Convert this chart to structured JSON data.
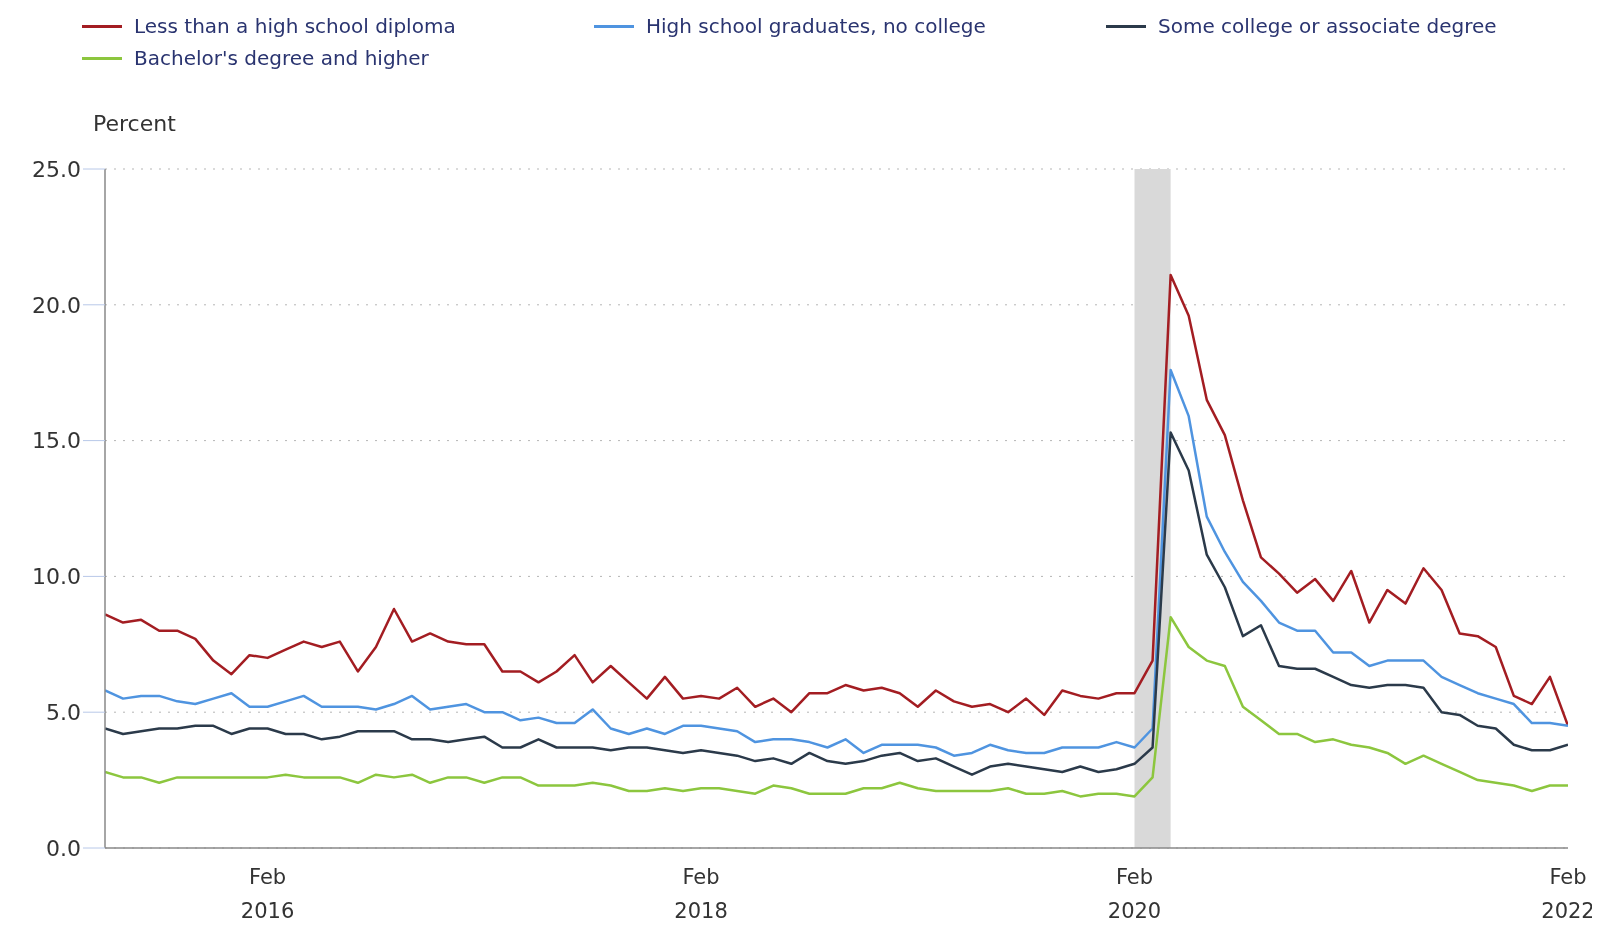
{
  "chart_data": {
    "type": "line",
    "ylabel": "Percent",
    "legend": "top",
    "grid": "y",
    "line_style": "solid",
    "x": [
      "2015-05",
      "2015-06",
      "2015-07",
      "2015-08",
      "2015-09",
      "2015-10",
      "2015-11",
      "2015-12",
      "2016-01",
      "2016-02",
      "2016-03",
      "2016-04",
      "2016-05",
      "2016-06",
      "2016-07",
      "2016-08",
      "2016-09",
      "2016-10",
      "2016-11",
      "2016-12",
      "2017-01",
      "2017-02",
      "2017-03",
      "2017-04",
      "2017-05",
      "2017-06",
      "2017-07",
      "2017-08",
      "2017-09",
      "2017-10",
      "2017-11",
      "2017-12",
      "2018-01",
      "2018-02",
      "2018-03",
      "2018-04",
      "2018-05",
      "2018-06",
      "2018-07",
      "2018-08",
      "2018-09",
      "2018-10",
      "2018-11",
      "2018-12",
      "2019-01",
      "2019-02",
      "2019-03",
      "2019-04",
      "2019-05",
      "2019-06",
      "2019-07",
      "2019-08",
      "2019-09",
      "2019-10",
      "2019-11",
      "2019-12",
      "2020-01",
      "2020-02",
      "2020-03",
      "2020-04",
      "2020-05",
      "2020-06",
      "2020-07",
      "2020-08",
      "2020-09",
      "2020-10",
      "2020-11",
      "2020-12",
      "2021-01",
      "2021-02",
      "2021-03",
      "2021-04",
      "2021-05",
      "2021-06",
      "2021-07",
      "2021-08",
      "2021-09",
      "2021-10",
      "2021-11",
      "2021-12",
      "2022-01",
      "2022-02"
    ],
    "xlim": [
      "2015-05",
      "2022-02"
    ],
    "xticks": [
      {
        "value": "2016-02",
        "label": "Feb 2016"
      },
      {
        "value": "2018-02",
        "label": "Feb 2018"
      },
      {
        "value": "2020-02",
        "label": "Feb 2020"
      },
      {
        "value": "2022-02",
        "label": "Feb 2022"
      }
    ],
    "ylim": [
      0,
      25
    ],
    "yticks": [
      {
        "value": 0,
        "label": "0.0"
      },
      {
        "value": 5,
        "label": "5.0"
      },
      {
        "value": 10,
        "label": "10.0"
      },
      {
        "value": 15,
        "label": "15.0"
      },
      {
        "value": 20,
        "label": "20.0"
      },
      {
        "value": 25,
        "label": "25.0"
      }
    ],
    "bands": [
      {
        "axis": "x",
        "from": "2020-02",
        "to": "2020-04",
        "color": "#d9d9d9"
      }
    ],
    "series": [
      {
        "name": "Less than a high school diploma",
        "color": "#a31d22",
        "values": [
          8.6,
          8.3,
          8.4,
          8.0,
          8.0,
          7.7,
          6.9,
          6.4,
          7.1,
          7.0,
          7.3,
          7.6,
          7.4,
          7.6,
          6.5,
          7.4,
          8.8,
          7.6,
          7.9,
          7.6,
          7.5,
          7.5,
          6.5,
          6.5,
          6.1,
          6.5,
          7.1,
          6.1,
          6.7,
          6.1,
          5.5,
          6.3,
          5.5,
          5.6,
          5.5,
          5.9,
          5.2,
          5.5,
          5.0,
          5.7,
          5.7,
          6.0,
          5.8,
          5.9,
          5.7,
          5.2,
          5.8,
          5.4,
          5.2,
          5.3,
          5.0,
          5.5,
          4.9,
          5.8,
          5.6,
          5.5,
          5.7,
          5.7,
          6.9,
          21.1,
          19.6,
          16.5,
          15.2,
          12.8,
          10.7,
          10.1,
          9.4,
          9.9,
          9.1,
          10.2,
          8.3,
          9.5,
          9.0,
          10.3,
          9.5,
          7.9,
          7.8,
          7.4,
          5.6,
          5.3,
          6.3,
          4.5
        ]
      },
      {
        "name": "High school graduates, no college",
        "color": "#4f94e0",
        "values": [
          5.8,
          5.5,
          5.6,
          5.6,
          5.4,
          5.3,
          5.5,
          5.7,
          5.2,
          5.2,
          5.4,
          5.6,
          5.2,
          5.2,
          5.2,
          5.1,
          5.3,
          5.6,
          5.1,
          5.2,
          5.3,
          5.0,
          5.0,
          4.7,
          4.8,
          4.6,
          4.6,
          5.1,
          4.4,
          4.2,
          4.4,
          4.2,
          4.5,
          4.5,
          4.4,
          4.3,
          3.9,
          4.0,
          4.0,
          3.9,
          3.7,
          4.0,
          3.5,
          3.8,
          3.8,
          3.8,
          3.7,
          3.4,
          3.5,
          3.8,
          3.6,
          3.5,
          3.5,
          3.7,
          3.7,
          3.7,
          3.9,
          3.7,
          4.4,
          17.6,
          15.9,
          12.2,
          10.9,
          9.8,
          9.1,
          8.3,
          8.0,
          8.0,
          7.2,
          7.2,
          6.7,
          6.9,
          6.9,
          6.9,
          6.3,
          6.0,
          5.7,
          5.5,
          5.3,
          4.6,
          4.6,
          4.5
        ]
      },
      {
        "name": "Some college or associate degree",
        "color": "#2b3a4a",
        "values": [
          4.4,
          4.2,
          4.3,
          4.4,
          4.4,
          4.5,
          4.5,
          4.2,
          4.4,
          4.4,
          4.2,
          4.2,
          4.0,
          4.1,
          4.3,
          4.3,
          4.3,
          4.0,
          4.0,
          3.9,
          4.0,
          4.1,
          3.7,
          3.7,
          4.0,
          3.7,
          3.7,
          3.7,
          3.6,
          3.7,
          3.7,
          3.6,
          3.5,
          3.6,
          3.5,
          3.4,
          3.2,
          3.3,
          3.1,
          3.5,
          3.2,
          3.1,
          3.2,
          3.4,
          3.5,
          3.2,
          3.3,
          3.0,
          2.7,
          3.0,
          3.1,
          3.0,
          2.9,
          2.8,
          3.0,
          2.8,
          2.9,
          3.1,
          3.7,
          15.3,
          13.9,
          10.8,
          9.6,
          7.8,
          8.2,
          6.7,
          6.6,
          6.6,
          6.3,
          6.0,
          5.9,
          6.0,
          6.0,
          5.9,
          5.0,
          4.9,
          4.5,
          4.4,
          3.8,
          3.6,
          3.6,
          3.8
        ]
      },
      {
        "name": "Bachelor's degree and higher",
        "color": "#8cc63e",
        "values": [
          2.8,
          2.6,
          2.6,
          2.4,
          2.6,
          2.6,
          2.6,
          2.6,
          2.6,
          2.6,
          2.7,
          2.6,
          2.6,
          2.6,
          2.4,
          2.7,
          2.6,
          2.7,
          2.4,
          2.6,
          2.6,
          2.4,
          2.6,
          2.6,
          2.3,
          2.3,
          2.3,
          2.4,
          2.3,
          2.1,
          2.1,
          2.2,
          2.1,
          2.2,
          2.2,
          2.1,
          2.0,
          2.3,
          2.2,
          2.0,
          2.0,
          2.0,
          2.2,
          2.2,
          2.4,
          2.2,
          2.1,
          2.1,
          2.1,
          2.1,
          2.2,
          2.0,
          2.0,
          2.1,
          1.9,
          2.0,
          2.0,
          1.9,
          2.6,
          8.5,
          7.4,
          6.9,
          6.7,
          5.2,
          4.7,
          4.2,
          4.2,
          3.9,
          4.0,
          3.8,
          3.7,
          3.5,
          3.1,
          3.4,
          3.1,
          2.8,
          2.5,
          2.4,
          2.3,
          2.1,
          2.3,
          2.3
        ]
      }
    ]
  }
}
